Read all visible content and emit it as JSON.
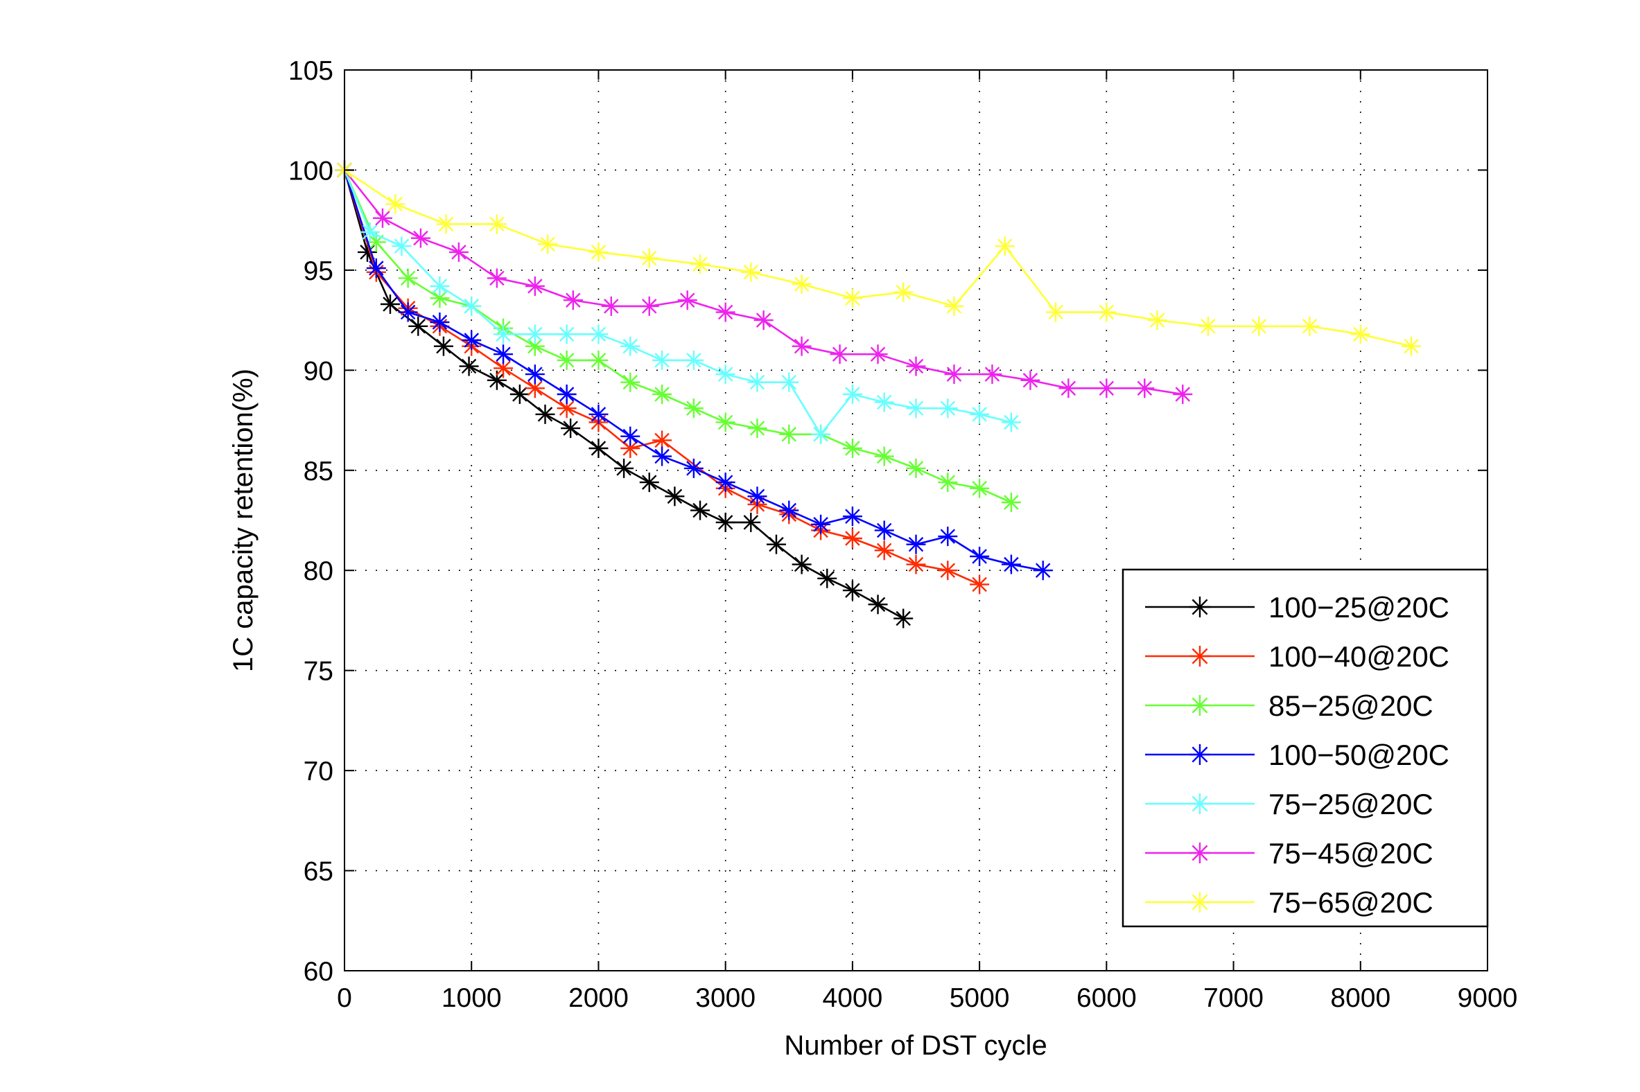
{
  "chart_data": {
    "type": "line",
    "title": "",
    "xlabel": "Number of DST cycle",
    "ylabel": "1C capacity retention(%)",
    "xlim": [
      0,
      9000
    ],
    "ylim": [
      60,
      105
    ],
    "xticks": [
      0,
      1000,
      2000,
      3000,
      4000,
      5000,
      6000,
      7000,
      8000,
      9000
    ],
    "yticks": [
      60,
      65,
      70,
      75,
      80,
      85,
      90,
      95,
      100,
      105
    ],
    "grid": true,
    "legend_position": "bottom-right",
    "marker": "asterisk",
    "series": [
      {
        "name": "100−25@20C",
        "color": "#000000",
        "x": [
          0,
          180,
          360,
          580,
          780,
          980,
          1200,
          1380,
          1580,
          1780,
          2000,
          2200,
          2400,
          2600,
          2800,
          3000,
          3200,
          3400,
          3600,
          3800,
          4000,
          4200,
          4400
        ],
        "y": [
          100,
          95.9,
          93.3,
          92.2,
          91.2,
          90.2,
          89.5,
          88.8,
          87.8,
          87.1,
          86.1,
          85.1,
          84.4,
          83.7,
          83.0,
          82.4,
          82.4,
          81.3,
          80.3,
          79.6,
          79.0,
          78.3,
          77.6
        ]
      },
      {
        "name": "100−40@20C",
        "color": "#ff2a00",
        "x": [
          0,
          250,
          500,
          750,
          1000,
          1250,
          1500,
          1750,
          2000,
          2250,
          2500,
          3000,
          3250,
          3500,
          3750,
          4000,
          4250,
          4500,
          4750,
          5000
        ],
        "y": [
          100,
          94.9,
          93.1,
          92.2,
          91.2,
          90.1,
          89.1,
          88.1,
          87.4,
          86.1,
          86.5,
          84.1,
          83.3,
          82.8,
          82.0,
          81.6,
          81.0,
          80.3,
          80.0,
          79.3
        ]
      },
      {
        "name": "85−25@20C",
        "color": "#66ff33",
        "x": [
          0,
          250,
          500,
          750,
          1000,
          1250,
          1500,
          1750,
          2000,
          2250,
          2500,
          2750,
          3000,
          3250,
          3500,
          3750,
          4000,
          4250,
          4500,
          4750,
          5000,
          5250
        ],
        "y": [
          100,
          96.4,
          94.6,
          93.6,
          93.2,
          92.1,
          91.2,
          90.5,
          90.5,
          89.4,
          88.8,
          88.1,
          87.4,
          87.1,
          86.8,
          86.8,
          86.1,
          85.7,
          85.1,
          84.4,
          84.1,
          83.4
        ]
      },
      {
        "name": "100−50@20C",
        "color": "#0000ff",
        "x": [
          0,
          250,
          500,
          750,
          1000,
          1250,
          1500,
          1750,
          2000,
          2250,
          2500,
          2750,
          3000,
          3250,
          3500,
          3750,
          4000,
          4250,
          4500,
          4750,
          5000,
          5250,
          5500
        ],
        "y": [
          100,
          95.1,
          92.9,
          92.4,
          91.5,
          90.8,
          89.8,
          88.8,
          87.8,
          86.7,
          85.7,
          85.1,
          84.4,
          83.7,
          83.0,
          82.3,
          82.7,
          82.0,
          81.3,
          81.7,
          80.7,
          80.3,
          80.0
        ]
      },
      {
        "name": "75−25@20C",
        "color": "#66ffff",
        "x": [
          0,
          200,
          450,
          750,
          1000,
          1250,
          1500,
          1750,
          2000,
          2250,
          2500,
          2750,
          3000,
          3250,
          3500,
          3750,
          4000,
          4250,
          4500,
          4750,
          5000,
          5250
        ],
        "y": [
          100,
          96.9,
          96.2,
          94.2,
          93.2,
          91.8,
          91.8,
          91.8,
          91.8,
          91.2,
          90.5,
          90.5,
          89.8,
          89.4,
          89.4,
          86.8,
          88.8,
          88.4,
          88.1,
          88.1,
          87.8,
          87.4
        ]
      },
      {
        "name": "75−45@20C",
        "color": "#ee22ee",
        "x": [
          0,
          300,
          600,
          900,
          1200,
          1500,
          1800,
          2100,
          2400,
          2700,
          3000,
          3300,
          3600,
          3900,
          4200,
          4500,
          4800,
          5100,
          5400,
          5700,
          6000,
          6300,
          6600
        ],
        "y": [
          100,
          97.6,
          96.6,
          95.9,
          94.6,
          94.2,
          93.5,
          93.2,
          93.2,
          93.5,
          92.9,
          92.5,
          91.2,
          90.8,
          90.8,
          90.2,
          89.8,
          89.8,
          89.5,
          89.1,
          89.1,
          89.1,
          88.8
        ]
      },
      {
        "name": "75−65@20C",
        "color": "#ffff33",
        "x": [
          0,
          400,
          800,
          1200,
          1600,
          2000,
          2400,
          2800,
          3200,
          3600,
          4000,
          4400,
          4800,
          5200,
          5600,
          6000,
          6400,
          6800,
          7200,
          7600,
          8000,
          8400
        ],
        "y": [
          100,
          98.3,
          97.3,
          97.3,
          96.3,
          95.9,
          95.6,
          95.3,
          94.9,
          94.3,
          93.6,
          93.9,
          93.2,
          96.2,
          92.9,
          92.9,
          92.5,
          92.2,
          92.2,
          92.2,
          91.8,
          91.2
        ]
      }
    ]
  }
}
